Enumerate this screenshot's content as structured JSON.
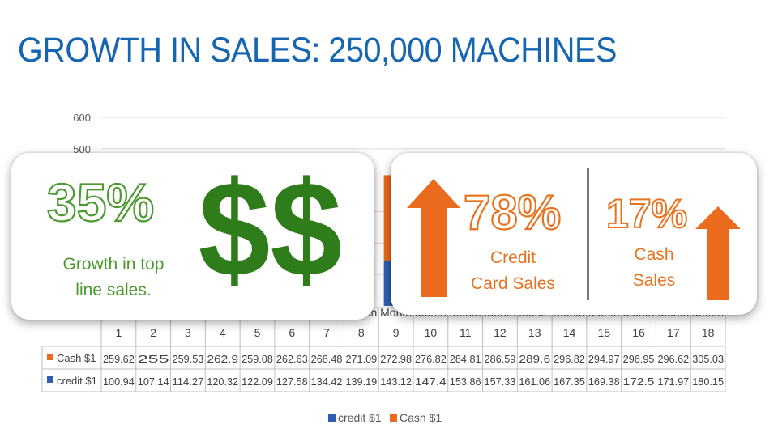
{
  "slide": {
    "title": "GROWTH IN SALES: 250,000 MACHINES"
  },
  "colors": {
    "title": "#1565b0",
    "credit": "#2f5fb5",
    "cash": "#ea6b1e",
    "green": "#2e7d1a",
    "green_text": "#4a9a2e",
    "orange_text": "#e8731f"
  },
  "cards": {
    "growth": {
      "percent": "35%",
      "caption_line1": "Growth in top",
      "caption_line2": "line sales.",
      "dollar_signs": "$$"
    },
    "credit": {
      "percent": "78%",
      "caption_line1": "Credit",
      "caption_line2": "Card Sales",
      "arrow_icon": "arrow-up-icon"
    },
    "cash": {
      "percent": "17%",
      "caption_line1": "Cash",
      "caption_line2": "Sales",
      "arrow_icon": "arrow-up-icon"
    }
  },
  "chart_data": {
    "type": "bar",
    "categories": [
      "1",
      "2",
      "3",
      "4",
      "5",
      "6",
      "7",
      "8",
      "9",
      "10",
      "11",
      "12",
      "13",
      "14",
      "15",
      "16",
      "17",
      "18"
    ],
    "category_label": "Month",
    "y_ticks_visible": [
      "600",
      "500"
    ],
    "ylim": [
      0,
      600
    ],
    "series": [
      {
        "name": "credit $1",
        "values": [
          100.94,
          107.14,
          114.27,
          120.32,
          122.09,
          127.58,
          134.42,
          139.19,
          143.12,
          147.4,
          153.86,
          157.33,
          161.06,
          167.35,
          169.38,
          172.5,
          171.97,
          180.15
        ]
      },
      {
        "name": "Cash $1",
        "values": [
          259.62,
          255,
          259.53,
          262.9,
          259.08,
          262.63,
          268.48,
          271.09,
          272.98,
          276.82,
          284.81,
          286.59,
          289.6,
          296.82,
          294.97,
          296.95,
          296.62,
          305.03
        ]
      }
    ],
    "table_values": {
      "cash": [
        "259.62",
        "255",
        "259.53",
        "262.9",
        "259.08",
        "262.63",
        "268.48",
        "271.09",
        "272.98",
        "276.82",
        "284.81",
        "286.59",
        "289.6",
        "296.82",
        "294.97",
        "296.95",
        "296.62",
        "305.03"
      ],
      "credit": [
        "100.94",
        "107.14",
        "114.27",
        "120.32",
        "122.09",
        "127.58",
        "134.42",
        "139.19",
        "143.12",
        "147.4",
        "153.86",
        "157.33",
        "161.06",
        "167.35",
        "169.38",
        "172.5",
        "171.97",
        "180.15"
      ]
    },
    "legend_position": "bottom",
    "grid": true
  }
}
